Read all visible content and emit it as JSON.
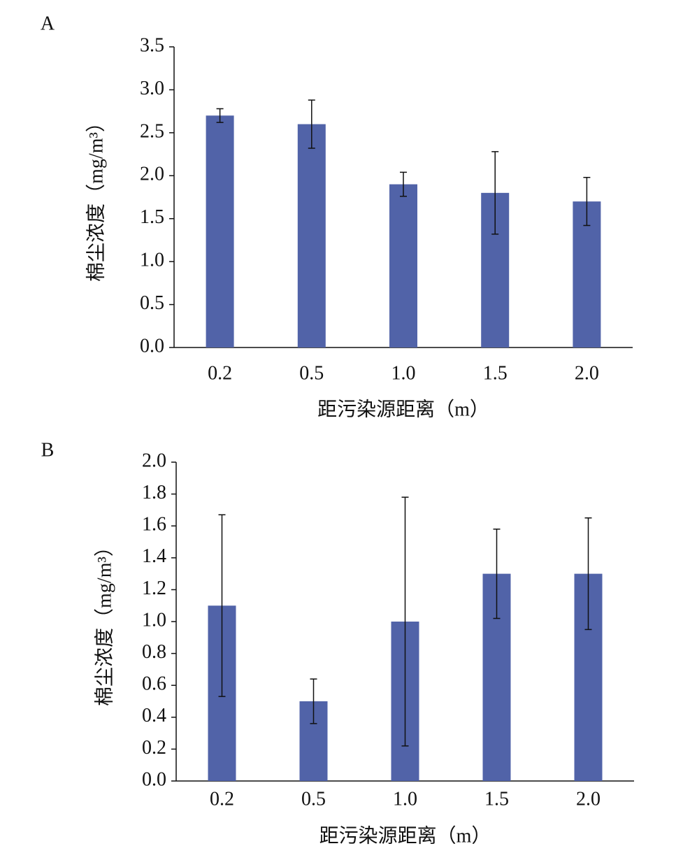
{
  "chart_data": [
    {
      "type": "bar",
      "panel_label": "A",
      "y_label": "棉尘浓度（mg/m³）",
      "x_label": "距污染源距离（m）",
      "categories": [
        "0.2",
        "0.5",
        "1.0",
        "1.5",
        "2.0"
      ],
      "values": [
        2.7,
        2.6,
        1.9,
        1.8,
        1.7
      ],
      "errors": [
        0.08,
        0.28,
        0.14,
        0.48,
        0.28
      ],
      "color": "#5163a8",
      "ylim": [
        0,
        3.5
      ],
      "yticks": [
        {
          "value": 0,
          "label": "0.0"
        },
        0.5,
        {
          "value": 1,
          "label": "1.0"
        },
        1.5,
        {
          "value": 2,
          "label": "2.0"
        },
        2.5,
        {
          "value": 3,
          "label": "3.0"
        },
        3.5
      ]
    },
    {
      "type": "bar",
      "panel_label": "B",
      "y_label": "棉尘浓度（mg/m³）",
      "x_label": "距污染源距离（m）",
      "categories": [
        "0.2",
        "0.5",
        "1.0",
        "1.5",
        "2.0"
      ],
      "values": [
        1.1,
        0.5,
        1.0,
        1.3,
        1.3
      ],
      "errors": [
        0.57,
        0.14,
        0.78,
        0.28,
        0.35
      ],
      "color": "#5163a8",
      "ylim": [
        0,
        2
      ],
      "yticks": [
        {
          "value": 0,
          "label": "0.0"
        },
        0.2,
        0.4,
        0.6,
        0.8,
        {
          "value": 1,
          "label": "1.0"
        },
        1.2,
        1.4,
        1.6,
        1.8,
        {
          "value": 2,
          "label": "2.0"
        }
      ]
    }
  ]
}
